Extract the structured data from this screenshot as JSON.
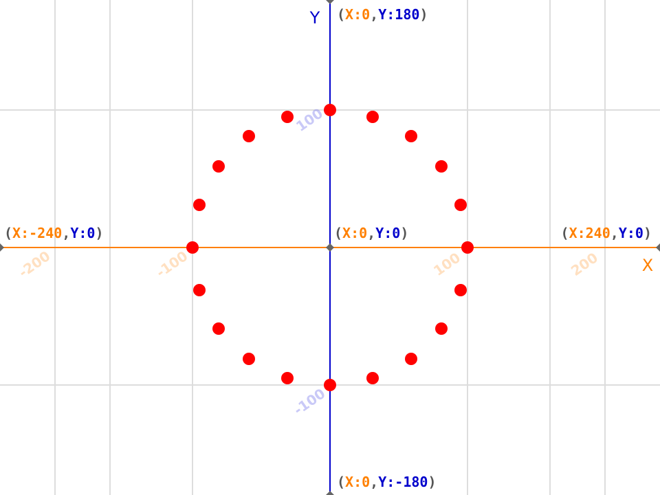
{
  "colors": {
    "x_axis": "#ff8000",
    "y_axis": "#0000cc",
    "x_tick": "#ffbb77",
    "y_tick": "#8888ee",
    "point": "#ff0000",
    "grid": "#dddddd",
    "paren": "#555555",
    "origin": "#666666"
  },
  "axis_names": {
    "x": "X",
    "y": "Y"
  },
  "coordinate_labels": [
    {
      "id": "top",
      "x_text": "X:0",
      "y_text": "Y:180",
      "x": 0,
      "y": 180
    },
    {
      "id": "origin",
      "x_text": "X:0",
      "y_text": "Y:0",
      "x": 0,
      "y": 0
    },
    {
      "id": "left",
      "x_text": "X:-240",
      "y_text": "Y:0",
      "x": -240,
      "y": 0
    },
    {
      "id": "right",
      "x_text": "X:240",
      "y_text": "Y:0",
      "x": 240,
      "y": 0
    },
    {
      "id": "bottom",
      "x_text": "X:0",
      "y_text": "Y:-180",
      "x": 0,
      "y": -180
    }
  ],
  "chart_data": {
    "type": "scatter",
    "xlim": [
      -240,
      240
    ],
    "ylim": [
      -180,
      180
    ],
    "grid": true,
    "grid_step": 100,
    "x_ticks": [
      {
        "value": -200,
        "label": "-200"
      },
      {
        "value": -100,
        "label": "-100"
      },
      {
        "value": 100,
        "label": "100"
      },
      {
        "value": 200,
        "label": "200"
      }
    ],
    "y_ticks": [
      {
        "value": 100,
        "label": "100"
      },
      {
        "value": -100,
        "label": "-100"
      }
    ],
    "series": [
      {
        "points": [
          {
            "x": 0,
            "y": 100
          },
          {
            "x": 31,
            "y": 95
          },
          {
            "x": 59,
            "y": 81
          },
          {
            "x": 81,
            "y": 59
          },
          {
            "x": 95,
            "y": 31
          },
          {
            "x": 100,
            "y": 0
          },
          {
            "x": 95,
            "y": -31
          },
          {
            "x": 81,
            "y": -59
          },
          {
            "x": 59,
            "y": -81
          },
          {
            "x": 31,
            "y": -95
          },
          {
            "x": 0,
            "y": -100
          },
          {
            "x": -31,
            "y": -95
          },
          {
            "x": -59,
            "y": -81
          },
          {
            "x": -81,
            "y": -59
          },
          {
            "x": -95,
            "y": -31
          },
          {
            "x": -100,
            "y": 0
          },
          {
            "x": -95,
            "y": 31
          },
          {
            "x": -81,
            "y": 59
          },
          {
            "x": -59,
            "y": 81
          },
          {
            "x": -31,
            "y": 95
          }
        ]
      }
    ]
  }
}
